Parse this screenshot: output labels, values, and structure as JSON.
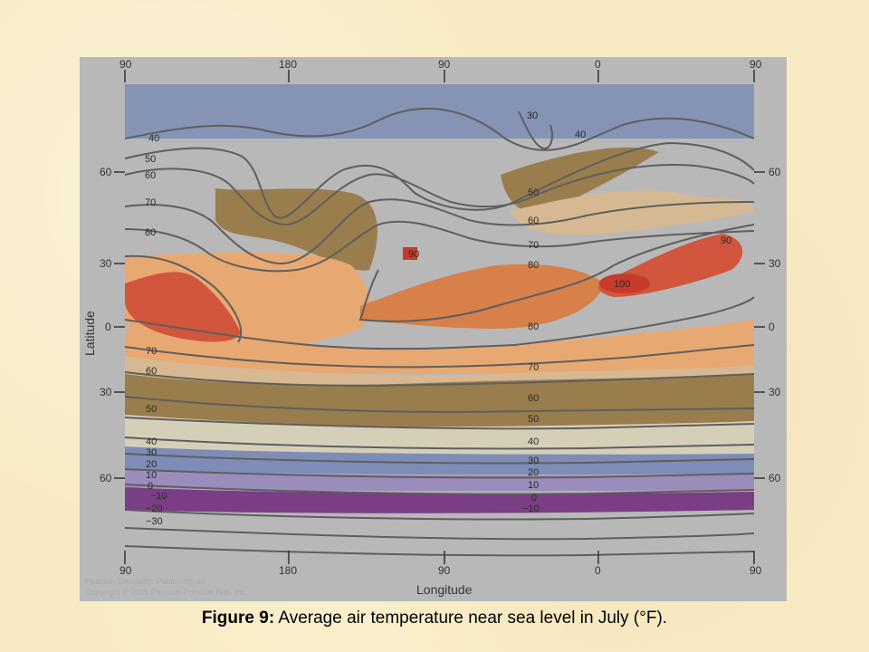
{
  "map": {
    "top_longitude_ticks": [
      "90",
      "180",
      "90",
      "0",
      "90"
    ],
    "bottom_longitude_ticks": [
      "90",
      "180",
      "90",
      "0",
      "90"
    ],
    "left_latitude_ticks": [
      "60",
      "30",
      "0",
      "30",
      "60"
    ],
    "right_latitude_ticks": [
      "60",
      "30",
      "0",
      "30",
      "60"
    ],
    "xlabel": "Longitude",
    "ylabel": "Latitude",
    "isotherm_labels": {
      "l40": "40",
      "l50": "50",
      "l60": "60",
      "l70": "70",
      "l80": "80",
      "n30": "30",
      "n40": "40",
      "a50": "50",
      "a60": "60",
      "a70": "70",
      "a80": "80",
      "a90": "90",
      "af90": "90",
      "af100": "100",
      "c80": "80",
      "c70": "70",
      "c60": "60",
      "c50": "50",
      "c40": "40",
      "c30": "30",
      "c20": "20",
      "c10": "10",
      "c0": "0",
      "cm10": "−10",
      "s70": "70",
      "s60": "60",
      "s50": "50",
      "s40": "40",
      "s30": "30",
      "s20": "20",
      "s10": "10",
      "s0": "0",
      "sm10": "−10",
      "sm20": "−20",
      "sm30": "−30"
    },
    "credit_line1": "Copyright © 2005 Pearson Prentice Hall, Inc.",
    "credit_line2": "Pearson Education Publishing as",
    "colors": {
      "hot_100": "#c73b2b",
      "hot_90": "#d2553d",
      "warm_80": "#d7804a",
      "warm_70": "#e8a872",
      "mild_60": "#d6b993",
      "cool_50": "#9a7d4c",
      "cold_40": "#7d8db7",
      "colder_10": "#9a8cbb",
      "coldest_minus10": "#7a3d86",
      "land": "#b4b4b4",
      "isotherm": "#5f5f5f"
    }
  },
  "caption": {
    "figure_label": "Figure 9:",
    "text": " Average air temperature near sea level in July (°F)."
  }
}
